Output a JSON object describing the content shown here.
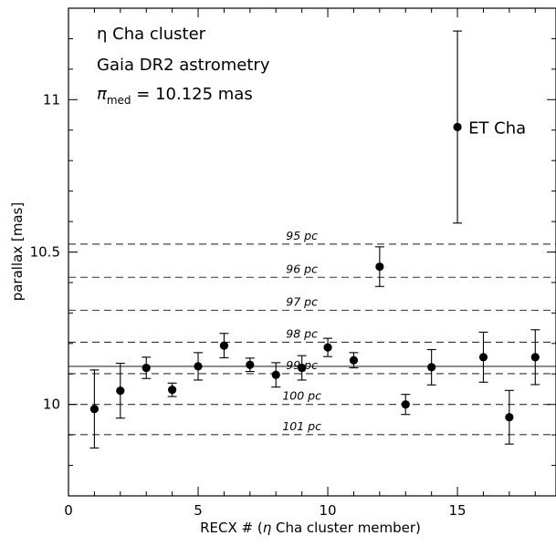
{
  "chart_data": {
    "type": "scatter",
    "title_lines": [
      "η  Cha cluster",
      "Gaia DR2 astrometry"
    ],
    "median_label": {
      "symbol": "π",
      "subscript": "med",
      "text": " = 10.125 mas"
    },
    "xlabel_parts": {
      "pre": "RECX # (",
      "eta": "η",
      "post": "  Cha cluster member)"
    },
    "ylabel": "parallax [mas]",
    "xlim": [
      0,
      18.8
    ],
    "ylim": [
      9.7,
      11.3
    ],
    "x_ticks": [
      0,
      5,
      10,
      15
    ],
    "y_ticks": [
      10,
      10.5,
      11
    ],
    "x_tick_labels": [
      "0",
      "5",
      "10",
      "15"
    ],
    "y_tick_labels": [
      "10",
      "10.5",
      "11"
    ],
    "median_value": 10.125,
    "distance_lines": [
      {
        "label": "95 pc",
        "value": 10.526
      },
      {
        "label": "96 pc",
        "value": 10.417
      },
      {
        "label": "97 pc",
        "value": 10.309
      },
      {
        "label": "98 pc",
        "value": 10.204
      },
      {
        "label": "99 pc",
        "value": 10.101
      },
      {
        "label": "100 pc",
        "value": 10.0
      },
      {
        "label": "101 pc",
        "value": 9.901
      }
    ],
    "series": [
      {
        "points": [
          {
            "x": 1,
            "y": 9.985,
            "err": 0.128
          },
          {
            "x": 2,
            "y": 10.045,
            "err": 0.09
          },
          {
            "x": 3,
            "y": 10.12,
            "err": 0.035
          },
          {
            "x": 4,
            "y": 10.048,
            "err": 0.022
          },
          {
            "x": 5,
            "y": 10.125,
            "err": 0.045
          },
          {
            "x": 6,
            "y": 10.193,
            "err": 0.04
          },
          {
            "x": 7,
            "y": 10.13,
            "err": 0.022
          },
          {
            "x": 8,
            "y": 10.097,
            "err": 0.04
          },
          {
            "x": 9,
            "y": 10.12,
            "err": 0.04
          },
          {
            "x": 10,
            "y": 10.187,
            "err": 0.03
          },
          {
            "x": 11,
            "y": 10.145,
            "err": 0.025
          },
          {
            "x": 12,
            "y": 10.452,
            "err": 0.065
          },
          {
            "x": 13,
            "y": 10.0,
            "err": 0.033
          },
          {
            "x": 14,
            "y": 10.122,
            "err": 0.058
          },
          {
            "x": 15,
            "y": 10.91,
            "err": 0.315
          },
          {
            "x": 16,
            "y": 10.155,
            "err": 0.082
          },
          {
            "x": 17,
            "y": 9.958,
            "err": 0.088
          },
          {
            "x": 18,
            "y": 10.155,
            "err": 0.09
          }
        ]
      }
    ],
    "point_annotation": {
      "x": 15,
      "y": 10.91,
      "text": "ET Cha"
    },
    "grid": false
  }
}
